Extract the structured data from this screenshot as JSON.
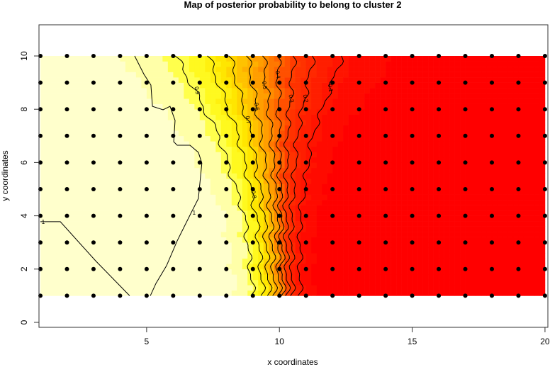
{
  "chart_data": {
    "type": "heatmap",
    "title": "Map of posterior probability to belong to cluster  2",
    "xlabel": "x coordinates",
    "ylabel": "y coordinates",
    "xlim": [
      1,
      20
    ],
    "ylim": [
      -0.2,
      11.7
    ],
    "x_ticks": [
      "5",
      "10",
      "15",
      "20"
    ],
    "y_ticks": [
      "0",
      "2",
      "4",
      "6",
      "8",
      "10"
    ],
    "grid_points": {
      "x": [
        1,
        2,
        3,
        4,
        5,
        6,
        7,
        8,
        9,
        10,
        11,
        12,
        13,
        14,
        15,
        16,
        17,
        18,
        19,
        20
      ],
      "y": [
        1,
        2,
        3,
        4,
        5,
        6,
        7,
        8,
        9,
        10
      ]
    },
    "color_scale": {
      "low": "#FF0000",
      "mid1": "#FF8000",
      "mid2": "#FFFF00",
      "high": "#FFFFCC"
    },
    "boundary_profile": [
      {
        "y": 1,
        "x_p50": 10.0,
        "spread_left": 0.45,
        "spread_right": 0.35
      },
      {
        "y": 4,
        "x_p50": 9.9,
        "spread_left": 0.55,
        "spread_right": 0.4
      },
      {
        "y": 7,
        "x_p50": 9.7,
        "spread_left": 0.9,
        "spread_right": 0.7
      },
      {
        "y": 10,
        "x_p50": 9.4,
        "spread_left": 1.5,
        "spread_right": 1.35
      }
    ],
    "contour_levels": [
      {
        "level": 0.1,
        "label": "0.1",
        "label_y": 8.8
      },
      {
        "level": 0.2,
        "label": "0.2",
        "label_y": 8.4
      },
      {
        "level": 0.3,
        "label": "0.3",
        "label_y": 8.4
      },
      {
        "level": 0.4,
        "label": "0.4",
        "label_y": 9.3
      },
      {
        "level": 0.5,
        "label": "0.5",
        "label_y": 8.9
      },
      {
        "level": 0.6,
        "label": "0.6",
        "label_y": 8.1
      },
      {
        "level": 0.7,
        "label": "0.7",
        "label_y": 7.6
      },
      {
        "level": 0.8,
        "label": "0.8",
        "label_y": 4.8
      },
      {
        "level": 0.9,
        "label": "0.9",
        "label_y": 8.7
      }
    ],
    "contour_one": [
      {
        "label": "1",
        "points": [
          [
            1,
            3.78
          ],
          [
            1.75,
            3.78
          ],
          [
            3.08,
            2.31
          ],
          [
            4.36,
            1.0
          ]
        ]
      },
      {
        "label": "1",
        "points": [
          [
            4.55,
            10
          ],
          [
            4.9,
            9.31
          ],
          [
            5.16,
            8.91
          ],
          [
            5.22,
            8.11
          ],
          [
            5.62,
            7.98
          ],
          [
            5.88,
            8.11
          ],
          [
            6.07,
            7.58
          ],
          [
            6.02,
            6.78
          ],
          [
            6.15,
            6.65
          ],
          [
            6.63,
            6.65
          ],
          [
            6.95,
            6.38
          ],
          [
            7.08,
            5.98
          ],
          [
            6.95,
            4.65
          ],
          [
            6.68,
            4.12
          ],
          [
            6.15,
            3.06
          ],
          [
            5.75,
            2.13
          ],
          [
            5.35,
            1.46
          ],
          [
            5.14,
            1.0
          ]
        ]
      }
    ]
  }
}
